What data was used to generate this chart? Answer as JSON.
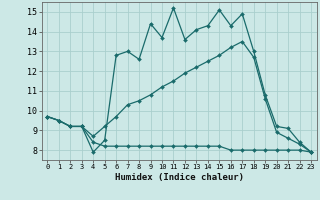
{
  "xlabel": "Humidex (Indice chaleur)",
  "bg_color": "#cce8e6",
  "line_color": "#1a6b6b",
  "grid_color": "#aacfcd",
  "xlim": [
    -0.5,
    23.5
  ],
  "ylim": [
    7.5,
    15.5
  ],
  "yticks": [
    8,
    9,
    10,
    11,
    12,
    13,
    14,
    15
  ],
  "xticks": [
    0,
    1,
    2,
    3,
    4,
    5,
    6,
    7,
    8,
    9,
    10,
    11,
    12,
    13,
    14,
    15,
    16,
    17,
    18,
    19,
    20,
    21,
    22,
    23
  ],
  "lines": [
    {
      "x": [
        0,
        1,
        2,
        3,
        4,
        5,
        6,
        7,
        8,
        9,
        10,
        11,
        12,
        13,
        14,
        15,
        16,
        17,
        18,
        19,
        20,
        21,
        22,
        23
      ],
      "y": [
        9.7,
        9.5,
        9.2,
        9.2,
        8.4,
        8.2,
        8.2,
        8.2,
        8.2,
        8.2,
        8.2,
        8.2,
        8.2,
        8.2,
        8.2,
        8.2,
        8.0,
        8.0,
        8.0,
        8.0,
        8.0,
        8.0,
        8.0,
        7.9
      ]
    },
    {
      "x": [
        0,
        1,
        2,
        3,
        4,
        5,
        6,
        7,
        8,
        9,
        10,
        11,
        12,
        13,
        14,
        15,
        16,
        17,
        18,
        19,
        20,
        21,
        22,
        23
      ],
      "y": [
        9.7,
        9.5,
        9.2,
        9.2,
        8.7,
        9.2,
        9.7,
        10.3,
        10.5,
        10.8,
        11.2,
        11.5,
        11.9,
        12.2,
        12.5,
        12.8,
        13.2,
        13.5,
        12.7,
        10.6,
        8.9,
        8.6,
        8.3,
        7.9
      ]
    },
    {
      "x": [
        0,
        1,
        2,
        3,
        4,
        5,
        6,
        7,
        8,
        9,
        10,
        11,
        12,
        13,
        14,
        15,
        16,
        17,
        18,
        19,
        20,
        21,
        22,
        23
      ],
      "y": [
        9.7,
        9.5,
        9.2,
        9.2,
        7.9,
        8.5,
        12.8,
        13.0,
        12.6,
        14.4,
        13.7,
        15.2,
        13.6,
        14.1,
        14.3,
        15.1,
        14.3,
        14.9,
        13.0,
        10.8,
        9.2,
        9.1,
        8.4,
        7.9
      ]
    }
  ]
}
